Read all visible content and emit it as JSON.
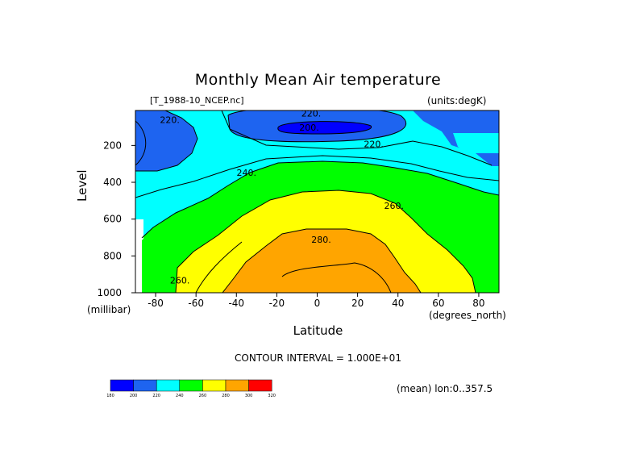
{
  "chart_data": {
    "type": "heatmap",
    "subtype": "filled-contour",
    "title": "Monthly Mean Air temperature",
    "source_label": "[T_1988-10_NCEP.nc]",
    "units_label": "(units:degK)",
    "xlabel": "Latitude",
    "ylabel": "Level",
    "x_unit": "(degrees_north)",
    "y_unit": "(millibar)",
    "xlim": [
      -90,
      90
    ],
    "ylim": [
      1000,
      10
    ],
    "x_ticks": [
      -80,
      -60,
      -40,
      -20,
      0,
      20,
      40,
      60,
      80
    ],
    "y_ticks": [
      200,
      400,
      600,
      800,
      1000
    ],
    "contour_interval_text": "CONTOUR INTERVAL = 1.000E+01",
    "mean_text": "(mean) lon:0..357.5",
    "contour_labels": [
      {
        "text": "220.",
        "lat": -73,
        "level": 70
      },
      {
        "text": "220.",
        "lat": -3,
        "level": 35
      },
      {
        "text": "200.",
        "lat": -4,
        "level": 110
      },
      {
        "text": "220.",
        "lat": 28,
        "level": 200
      },
      {
        "text": "240.",
        "lat": -35,
        "level": 355
      },
      {
        "text": "260.",
        "lat": 38,
        "level": 535
      },
      {
        "text": "280.",
        "lat": 2,
        "level": 720
      },
      {
        "text": "260.",
        "lat": -68,
        "level": 940
      }
    ],
    "colorbar": {
      "levels": [
        "180",
        "200",
        "220",
        "240",
        "260",
        "280",
        "300",
        "320"
      ],
      "colors": [
        "#0000ff",
        "#1e64f0",
        "#00ffff",
        "#00ff00",
        "#ffff00",
        "#ffa500",
        "#ff0000"
      ]
    }
  }
}
